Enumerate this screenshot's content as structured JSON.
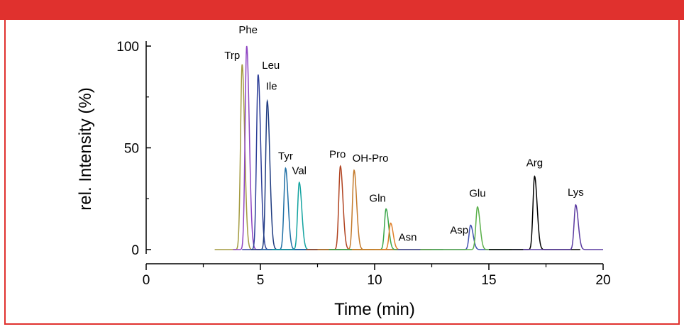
{
  "frame": {
    "accent_color": "#e0312e"
  },
  "chart_data": {
    "type": "line",
    "xlabel": "Time (min)",
    "ylabel": "rel. Intensity (%)",
    "xlim": [
      0,
      20
    ],
    "ylim": [
      0,
      100
    ],
    "x_ticks": [
      "0",
      "5",
      "10",
      "15",
      "20"
    ],
    "y_ticks": [
      "0",
      "50",
      "100"
    ],
    "grid": false,
    "series": [
      {
        "name": "Trp",
        "rt": 4.2,
        "height": 91,
        "color": "#a39a3f",
        "start": 3.0,
        "end": 8.0
      },
      {
        "name": "Phe",
        "rt": 4.4,
        "height": 100,
        "color": "#8e44c2",
        "start": 3.8,
        "end": 8.0
      },
      {
        "name": "Leu",
        "rt": 4.9,
        "height": 86,
        "color": "#2e3f98",
        "start": 4.2,
        "end": 8.5
      },
      {
        "name": "Ile",
        "rt": 5.3,
        "height": 73,
        "color": "#1f3b80",
        "start": 4.6,
        "end": 8.5
      },
      {
        "name": "Tyr",
        "rt": 6.1,
        "height": 40,
        "color": "#1f6fa5",
        "start": 5.0,
        "end": 9.5
      },
      {
        "name": "Val",
        "rt": 6.7,
        "height": 33,
        "color": "#13a3a0",
        "start": 5.5,
        "end": 10.0
      },
      {
        "name": "Pro",
        "rt": 8.5,
        "height": 41,
        "color": "#b0421f",
        "start": 7.0,
        "end": 11.0
      },
      {
        "name": "OH-Pro",
        "rt": 9.1,
        "height": 39,
        "color": "#c47a2a",
        "start": 7.5,
        "end": 12.0
      },
      {
        "name": "Gln",
        "rt": 10.5,
        "height": 20,
        "color": "#3aa64a",
        "start": 8.0,
        "end": 13.0
      },
      {
        "name": "Asn",
        "rt": 10.7,
        "height": 13,
        "color": "#e0802a",
        "start": 9.0,
        "end": 12.5
      },
      {
        "name": "Asp",
        "rt": 14.2,
        "height": 12,
        "color": "#3f4fb0",
        "start": 11.0,
        "end": 16.5
      },
      {
        "name": "Glu",
        "rt": 14.5,
        "height": 21,
        "color": "#5ab04a",
        "start": 12.0,
        "end": 16.0
      },
      {
        "name": "Arg",
        "rt": 17.0,
        "height": 36,
        "color": "#000000",
        "start": 15.0,
        "end": 19.0
      },
      {
        "name": "Lys",
        "rt": 18.8,
        "height": 22,
        "color": "#5a3aa0",
        "start": 16.5,
        "end": 20.0
      }
    ]
  }
}
